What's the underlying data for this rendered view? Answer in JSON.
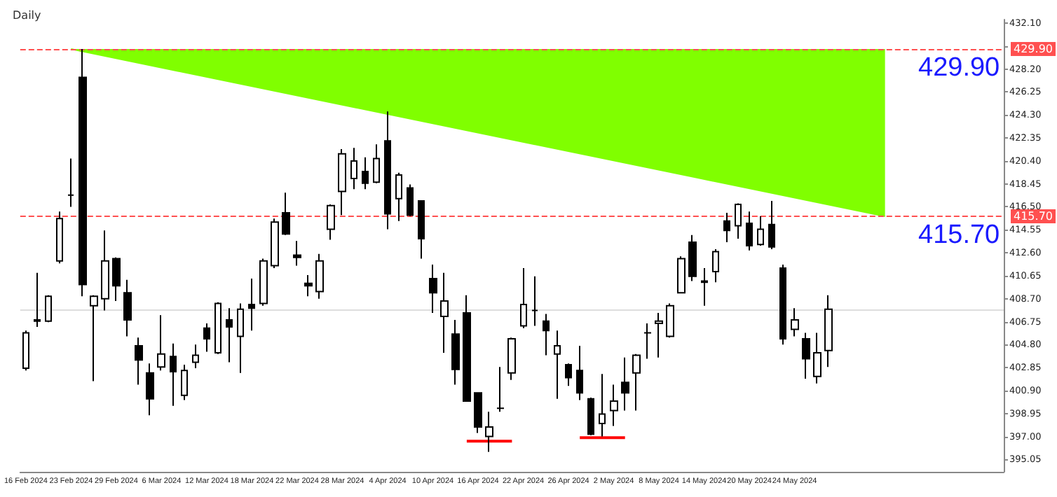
{
  "chart_data": {
    "type": "candlestick",
    "title": "Daily",
    "categories": [
      "16 Feb 2024",
      null,
      null,
      null,
      "23 Feb 2024",
      null,
      null,
      null,
      "29 Feb 2024",
      null,
      null,
      null,
      "6 Mar 2024",
      null,
      null,
      null,
      "12 Mar 2024",
      null,
      null,
      null,
      "18 Mar 2024",
      null,
      null,
      null,
      "22 Mar 2024",
      null,
      null,
      null,
      "28 Mar 2024",
      null,
      null,
      null,
      "4 Apr 2024",
      null,
      null,
      null,
      "10 Apr 2024",
      null,
      null,
      null,
      "16 Apr 2024",
      null,
      null,
      null,
      "22 Apr 2024",
      null,
      null,
      null,
      "26 Apr 2024",
      null,
      null,
      null,
      "2 May 2024",
      null,
      null,
      null,
      "8 May 2024",
      null,
      null,
      null,
      "14 May 2024",
      null,
      null,
      null,
      "20 May 2024",
      null,
      null,
      null,
      "24 May 2024",
      null,
      null,
      null,
      null,
      null,
      null,
      null,
      null,
      null,
      null,
      null,
      null,
      null,
      null,
      null,
      null,
      null,
      null
    ],
    "series": [
      {
        "type": "candlestick",
        "color": "#000000",
        "ohlc": [
          [
            402.8,
            406.0,
            402.6,
            405.8
          ],
          [
            406.8,
            410.9,
            406.3,
            406.9
          ],
          [
            406.8,
            409.0,
            406.7,
            408.9
          ],
          [
            411.9,
            416.1,
            411.7,
            415.5
          ],
          [
            417.5,
            420.6,
            416.5,
            417.5
          ],
          [
            427.5,
            429.9,
            408.9,
            409.9
          ],
          [
            408.1,
            409.0,
            401.7,
            408.9
          ],
          [
            408.7,
            414.5,
            407.7,
            411.9
          ],
          [
            412.1,
            412.2,
            408.5,
            409.8
          ],
          [
            409.2,
            410.3,
            405.5,
            406.9
          ],
          [
            404.7,
            405.4,
            401.4,
            403.5
          ],
          [
            402.4,
            403.2,
            398.8,
            400.2
          ],
          [
            402.9,
            407.3,
            402.6,
            404.0
          ],
          [
            403.8,
            404.9,
            399.6,
            402.5
          ],
          [
            400.5,
            403.1,
            400.1,
            402.6
          ],
          [
            403.3,
            404.8,
            402.8,
            403.9
          ],
          [
            406.2,
            406.6,
            404.2,
            405.3
          ],
          [
            404.1,
            408.4,
            404.0,
            408.3
          ],
          [
            406.9,
            407.9,
            403.3,
            406.3
          ],
          [
            405.5,
            408.3,
            402.4,
            407.8
          ],
          [
            408.2,
            410.4,
            406.0,
            407.9
          ],
          [
            408.3,
            412.1,
            408.1,
            411.9
          ],
          [
            411.5,
            415.5,
            411.3,
            415.2
          ],
          [
            416.0,
            417.7,
            414.1,
            414.2
          ],
          [
            412.4,
            413.6,
            411.5,
            412.2
          ],
          [
            410.0,
            410.7,
            408.9,
            409.8
          ],
          [
            409.3,
            412.5,
            408.7,
            411.9
          ],
          [
            414.6,
            416.7,
            413.7,
            416.6
          ],
          [
            417.8,
            421.4,
            415.8,
            421.0
          ],
          [
            418.9,
            421.5,
            418.0,
            420.4
          ],
          [
            419.5,
            420.7,
            418.0,
            418.5
          ],
          [
            418.6,
            421.8,
            418.5,
            420.6
          ],
          [
            422.1,
            424.6,
            414.6,
            415.9
          ],
          [
            417.2,
            419.4,
            415.3,
            419.2
          ],
          [
            418.1,
            418.4,
            415.7,
            415.8
          ],
          [
            417.0,
            417.0,
            412.1,
            413.8
          ],
          [
            410.4,
            411.6,
            407.5,
            409.2
          ],
          [
            407.2,
            410.9,
            404.1,
            408.5
          ],
          [
            405.7,
            406.9,
            401.4,
            402.7
          ],
          [
            407.5,
            409.0,
            400.0,
            400.0
          ],
          [
            400.7,
            400.7,
            397.3,
            397.8
          ],
          [
            397.0,
            399.1,
            395.7,
            397.8
          ],
          [
            399.4,
            402.9,
            399.1,
            399.4
          ],
          [
            402.4,
            405.4,
            401.8,
            405.3
          ],
          [
            406.4,
            411.3,
            406.2,
            408.2
          ],
          [
            407.7,
            410.6,
            406.4,
            407.7
          ],
          [
            406.8,
            407.4,
            403.9,
            406.0
          ],
          [
            404.0,
            406.0,
            400.2,
            404.7
          ],
          [
            403.1,
            403.2,
            401.3,
            402.0
          ],
          [
            402.6,
            404.7,
            400.1,
            400.7
          ],
          [
            400.2,
            400.3,
            397.1,
            397.2
          ],
          [
            398.1,
            402.3,
            397.0,
            398.9
          ],
          [
            399.2,
            401.4,
            397.9,
            400.0
          ],
          [
            401.6,
            403.7,
            399.2,
            400.7
          ],
          [
            402.4,
            404.0,
            399.2,
            403.9
          ],
          [
            405.8,
            406.6,
            403.6,
            405.8
          ],
          [
            406.6,
            407.5,
            403.7,
            406.8
          ],
          [
            405.5,
            408.3,
            405.4,
            408.1
          ],
          [
            409.2,
            412.3,
            409.2,
            412.1
          ],
          [
            413.5,
            414.1,
            410.2,
            410.6
          ],
          [
            410.2,
            411.3,
            408.1,
            410.1
          ],
          [
            411.0,
            412.9,
            410.1,
            412.7
          ],
          [
            415.3,
            416.0,
            413.5,
            414.5
          ],
          [
            414.9,
            416.8,
            413.8,
            416.7
          ],
          [
            415.1,
            416.1,
            412.8,
            413.2
          ],
          [
            413.3,
            415.7,
            413.2,
            414.6
          ],
          [
            415.0,
            417.0,
            412.9,
            413.1
          ],
          [
            411.3,
            411.6,
            404.8,
            405.3
          ],
          [
            406.1,
            407.9,
            405.5,
            406.9
          ],
          [
            405.3,
            405.8,
            401.9,
            403.6
          ],
          [
            402.1,
            405.8,
            401.5,
            404.1
          ],
          [
            404.3,
            409.0,
            402.9,
            407.8
          ],
          null,
          null,
          null,
          null,
          null,
          null,
          null,
          null,
          null,
          null,
          null,
          null,
          null,
          null,
          null
        ]
      },
      {
        "type": "area",
        "color": "#80ff00",
        "values": [
          null,
          null,
          null,
          null,
          429.9,
          null,
          null,
          null,
          null,
          null,
          null,
          null,
          null,
          null,
          null,
          null,
          null,
          null,
          null,
          null,
          null,
          null,
          null,
          null,
          null,
          null,
          null,
          null,
          null,
          null,
          null,
          null,
          null,
          null,
          null,
          null,
          null,
          null,
          null,
          null,
          null,
          null,
          null,
          null,
          null,
          null,
          null,
          null,
          null,
          null,
          null,
          null,
          null,
          null,
          null,
          null,
          null,
          null,
          null,
          null,
          null,
          null,
          null,
          null,
          null,
          null,
          null,
          null,
          null,
          null,
          null,
          null,
          null,
          null,
          null,
          null,
          415.7,
          null,
          null,
          null,
          null,
          null,
          null,
          null,
          null,
          null,
          null
        ]
      },
      {
        "type": "line",
        "color": "#ff0000",
        "values": [
          null,
          null,
          null,
          null,
          null,
          null,
          null,
          null,
          null,
          null,
          null,
          null,
          null,
          null,
          null,
          null,
          null,
          null,
          null,
          null,
          null,
          null,
          null,
          null,
          null,
          null,
          null,
          null,
          null,
          null,
          null,
          null,
          null,
          null,
          null,
          null,
          null,
          null,
          null,
          396.6,
          null,
          null,
          null,
          396.6,
          null,
          null,
          null,
          null,
          null,
          null,
          null,
          null,
          null,
          null,
          null,
          null,
          null,
          null,
          null,
          null,
          null,
          null,
          null,
          null,
          null,
          null,
          null,
          null,
          null,
          null,
          null,
          null,
          null,
          null,
          null,
          null,
          null,
          null,
          null,
          null,
          null,
          null,
          null,
          null,
          null,
          null,
          null
        ]
      },
      {
        "type": "line",
        "color": "#ff0000",
        "values": [
          null,
          null,
          null,
          null,
          null,
          null,
          null,
          null,
          null,
          null,
          null,
          null,
          null,
          null,
          null,
          null,
          null,
          null,
          null,
          null,
          null,
          null,
          null,
          null,
          null,
          null,
          null,
          null,
          null,
          null,
          null,
          null,
          null,
          null,
          null,
          null,
          null,
          null,
          null,
          null,
          null,
          null,
          null,
          null,
          null,
          null,
          null,
          null,
          null,
          396.9,
          null,
          null,
          null,
          396.9,
          null,
          null,
          null,
          null,
          null,
          null,
          null,
          null,
          null,
          null,
          null,
          null,
          null,
          null,
          null,
          null,
          null,
          null,
          null,
          null,
          null,
          null,
          null,
          null,
          null,
          null,
          null,
          null,
          null,
          null,
          null,
          null,
          null
        ]
      }
    ],
    "ylim": [
      394.0,
      432.4
    ],
    "yticks": [
      {
        "value": 395.05,
        "label": "395.05"
      },
      {
        "value": 397.0,
        "label": "397.00"
      },
      {
        "value": 398.95,
        "label": "398.95"
      },
      {
        "value": 400.9,
        "label": "400.90"
      },
      {
        "value": 402.85,
        "label": "402.85"
      },
      {
        "value": 404.8,
        "label": "404.80"
      },
      {
        "value": 406.75,
        "label": "406.75"
      },
      {
        "value": 408.7,
        "label": "408.70"
      },
      {
        "value": 410.65,
        "label": "410.65"
      },
      {
        "value": 412.6,
        "label": "412.60"
      },
      {
        "value": 414.55,
        "label": "414.55"
      },
      {
        "value": 416.5,
        "label": "416.50"
      },
      {
        "value": 418.45,
        "label": "418.45"
      },
      {
        "value": 420.4,
        "label": "420.40"
      },
      {
        "value": 422.35,
        "label": "422.35"
      },
      {
        "value": 424.3,
        "label": "424.30"
      },
      {
        "value": 426.25,
        "label": "426.25"
      },
      {
        "value": 428.2,
        "label": "428.20"
      },
      {
        "value": 430.15,
        "label": null
      },
      {
        "value": 432.1,
        "label": "432.10"
      }
    ],
    "ref_lines": [
      {
        "axis": "y",
        "value": 429.9,
        "label": "429.90",
        "color": "#ff5050",
        "line_style": "dashed"
      },
      {
        "axis": "y",
        "value": 415.7,
        "label": "415.70",
        "color": "#ff5050",
        "line_style": "dashed"
      },
      {
        "axis": "y",
        "value": 407.82,
        "label": null,
        "color": "#dddddd",
        "line_style": "solid"
      }
    ],
    "annotations": [
      {
        "text": "429.90",
        "y": 429.9
      },
      {
        "text": "415.70",
        "y": 415.7
      }
    ],
    "marker": "none"
  }
}
